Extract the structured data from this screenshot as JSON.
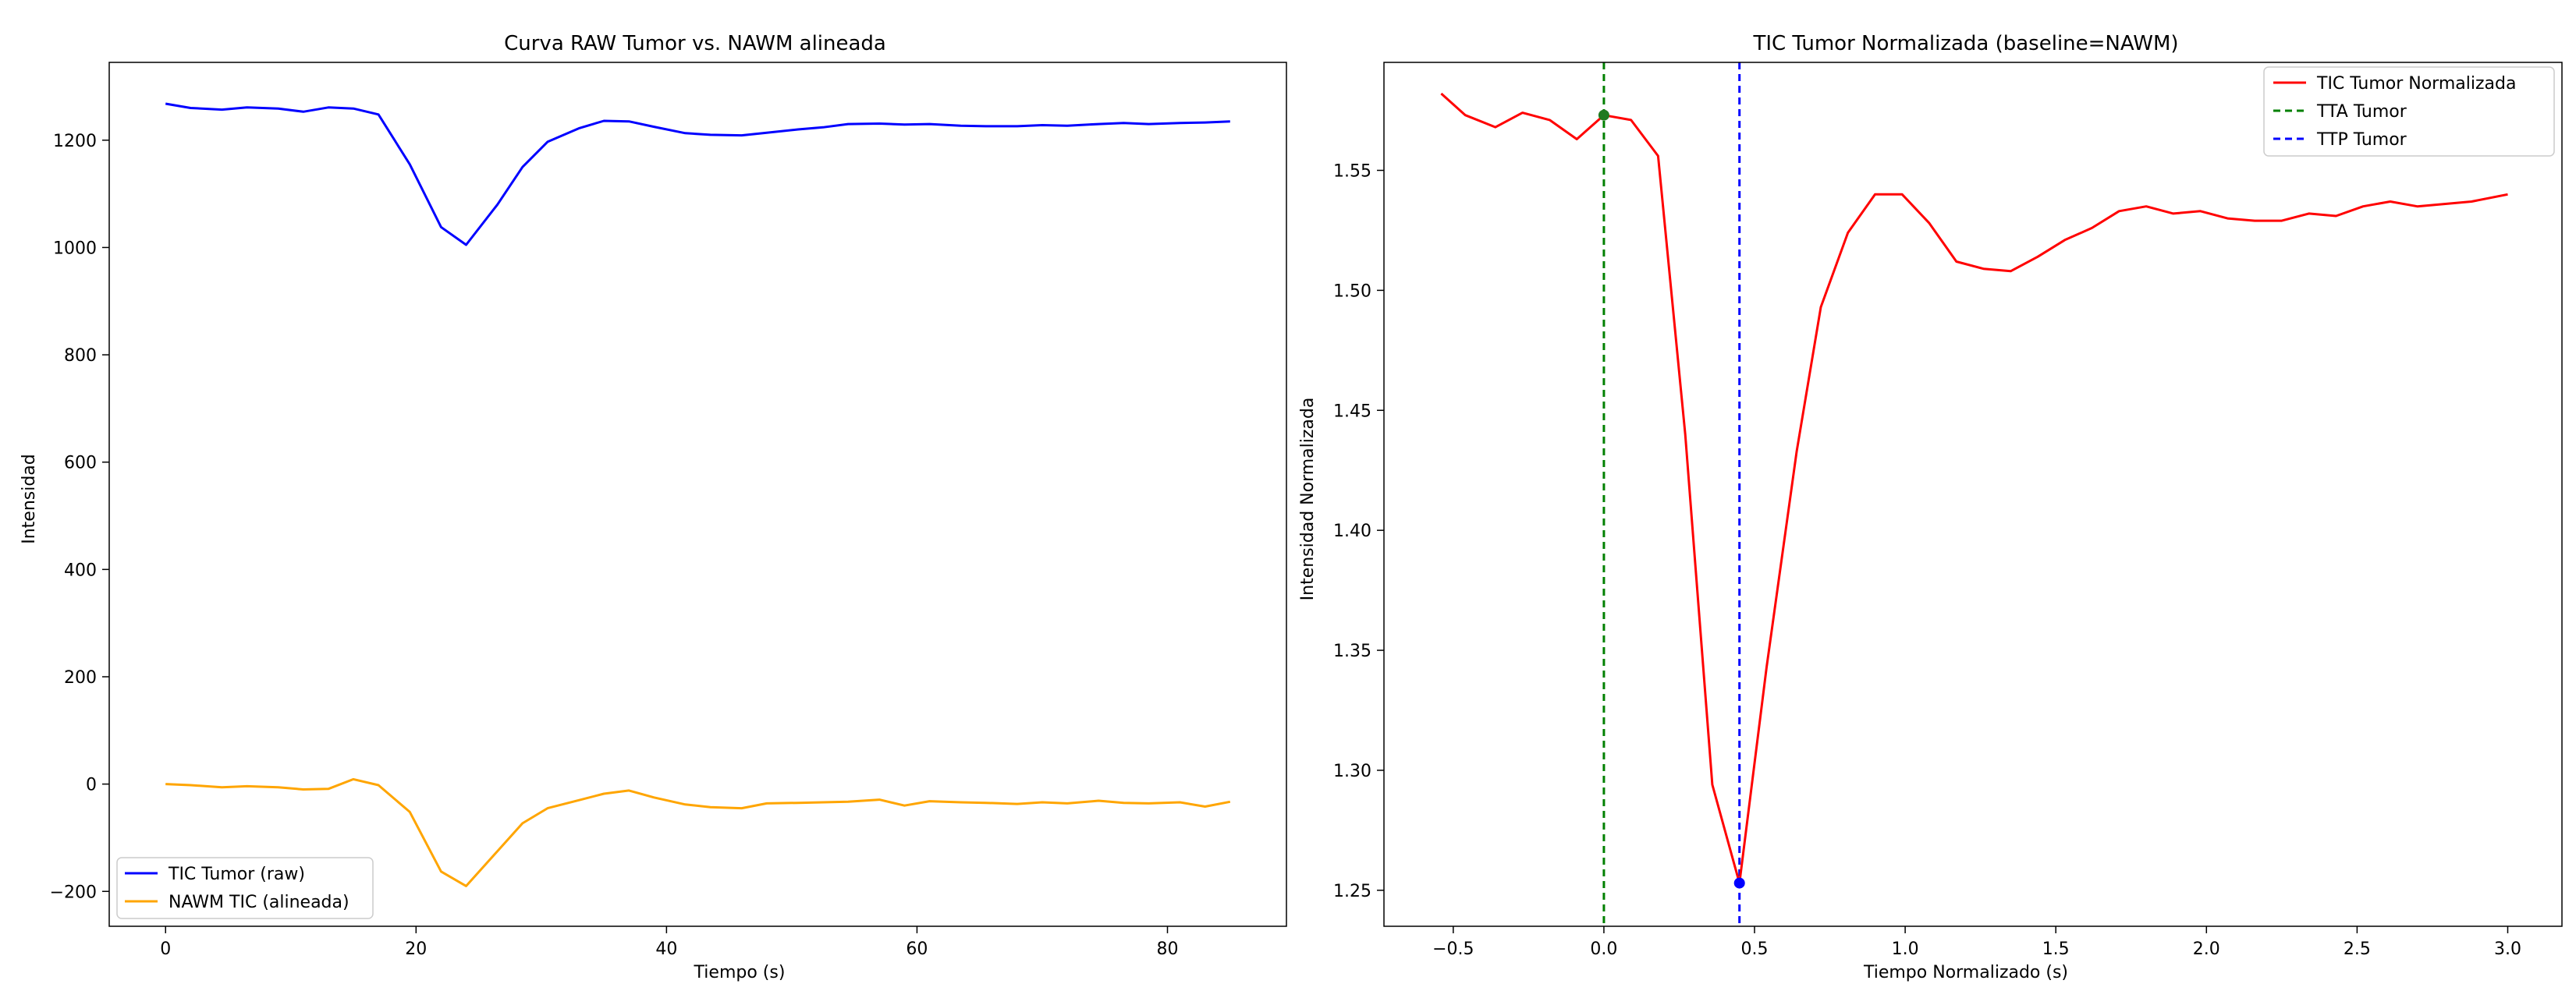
{
  "chart_data": [
    {
      "type": "line",
      "title": "Curva RAW Tumor vs. NAWM alineada",
      "xlabel": "Tiempo (s)",
      "ylabel": "Intensidad",
      "xlim": [
        -4.5,
        89.5
      ],
      "ylim": [
        -265,
        1345
      ],
      "xticks": [
        0,
        20,
        40,
        60,
        80
      ],
      "yticks": [
        -200,
        0,
        200,
        400,
        600,
        800,
        1000,
        1200
      ],
      "legend_position": "lower-left",
      "series": [
        {
          "name": "TIC Tumor (raw)",
          "color": "#0000ff",
          "x": [
            0,
            2,
            4.5,
            6.5,
            9,
            11,
            13,
            15,
            17,
            19.5,
            22,
            24,
            26.5,
            28.5,
            30.5,
            33,
            35,
            37,
            39,
            41.5,
            43.5,
            46,
            48,
            50.5,
            52.5,
            54.5,
            57,
            59,
            61,
            63.5,
            65.5,
            68,
            70,
            72,
            74.5,
            76.5,
            78.5,
            81,
            83,
            85
          ],
          "y": [
            1268,
            1260,
            1257,
            1261,
            1259,
            1253,
            1261,
            1259,
            1248,
            1155,
            1038,
            1005,
            1080,
            1150,
            1197,
            1222,
            1236,
            1235,
            1225,
            1213,
            1210,
            1209,
            1214,
            1220,
            1224,
            1230,
            1231,
            1229,
            1230,
            1227,
            1226,
            1226,
            1228,
            1227,
            1230,
            1232,
            1230,
            1232,
            1233,
            1235
          ]
        },
        {
          "name": "NAWM TIC (alineada)",
          "color": "#ffa500",
          "x": [
            0,
            2,
            4.5,
            6.5,
            9,
            11,
            13,
            15,
            17,
            19.5,
            22,
            24,
            26.5,
            28.5,
            30.5,
            33,
            35,
            37,
            39,
            41.5,
            43.5,
            46,
            48,
            50.5,
            52.5,
            54.5,
            57,
            59,
            61,
            63.5,
            65.5,
            68,
            70,
            72,
            74.5,
            76.5,
            78.5,
            81,
            83,
            85
          ],
          "y": [
            0,
            -2,
            -6,
            -4,
            -6,
            -10,
            -9,
            9,
            -2,
            -52,
            -163,
            -190,
            -125,
            -73,
            -45,
            -30,
            -18,
            -12,
            -25,
            -38,
            -43,
            -45,
            -36,
            -35,
            -34,
            -33,
            -29,
            -40,
            -32,
            -34,
            -35,
            -37,
            -34,
            -36,
            -31,
            -35,
            -36,
            -34,
            -42,
            -33
          ]
        }
      ]
    },
    {
      "type": "line",
      "title": "TIC Tumor Normalizada (baseline=NAWM)",
      "xlabel": "Tiempo Normalizado (s)",
      "ylabel": "Intensidad Normalizada",
      "xlim": [
        -0.73,
        3.18
      ],
      "ylim": [
        1.235,
        1.595
      ],
      "xticks": [
        -0.5,
        0.0,
        0.5,
        1.0,
        1.5,
        2.0,
        2.5,
        3.0
      ],
      "xtick_labels": [
        "−0.5",
        "0.0",
        "0.5",
        "1.0",
        "1.5",
        "2.0",
        "2.5",
        "3.0"
      ],
      "yticks": [
        1.25,
        1.3,
        1.35,
        1.4,
        1.45,
        1.5,
        1.55
      ],
      "ytick_labels": [
        "1.25",
        "1.30",
        "1.35",
        "1.40",
        "1.45",
        "1.50",
        "1.55"
      ],
      "legend_position": "upper-right",
      "series": [
        {
          "name": "TIC Tumor Normalizada",
          "color": "#ff0000",
          "x": [
            -0.54,
            -0.46,
            -0.36,
            -0.27,
            -0.18,
            -0.09,
            0.0,
            0.09,
            0.18,
            0.27,
            0.36,
            0.45,
            0.54,
            0.64,
            0.72,
            0.81,
            0.9,
            0.99,
            1.08,
            1.17,
            1.26,
            1.35,
            1.44,
            1.53,
            1.62,
            1.71,
            1.8,
            1.89,
            1.98,
            2.07,
            2.16,
            2.25,
            2.34,
            2.43,
            2.52,
            2.61,
            2.7,
            2.79,
            2.88,
            3.0
          ],
          "y": [
            1.582,
            1.573,
            1.568,
            1.574,
            1.571,
            1.563,
            1.573,
            1.571,
            1.556,
            1.44,
            1.294,
            1.253,
            1.343,
            1.433,
            1.493,
            1.524,
            1.54,
            1.54,
            1.528,
            1.512,
            1.509,
            1.508,
            1.514,
            1.521,
            1.526,
            1.533,
            1.535,
            1.532,
            1.533,
            1.53,
            1.529,
            1.529,
            1.532,
            1.531,
            1.535,
            1.537,
            1.535,
            1.536,
            1.537,
            1.54
          ]
        }
      ],
      "vlines": [
        {
          "name": "TTA Tumor",
          "x": 0.0,
          "color": "#008000",
          "style": "dashed"
        },
        {
          "name": "TTP Tumor",
          "x": 0.45,
          "color": "#0000ff",
          "style": "dashed"
        }
      ],
      "markers": [
        {
          "x": 0.0,
          "y": 1.573,
          "color": "#1f7a1f"
        },
        {
          "x": 0.45,
          "y": 1.253,
          "color": "#0000ff"
        }
      ]
    }
  ]
}
